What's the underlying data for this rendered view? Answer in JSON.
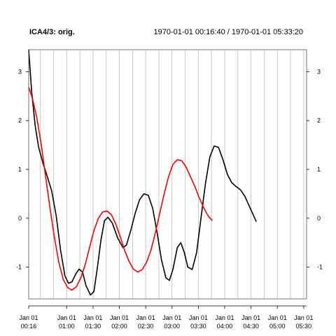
{
  "chart_data": {
    "type": "line",
    "title": "ICA4/3:  orig.",
    "time_range": "1970-01-01 00:16:40 / 1970-01-01 05:33:20",
    "x_unit": "minutes",
    "xlim": [
      16.67,
      333.33
    ],
    "ylim": [
      -1.65,
      3.45
    ],
    "y_ticks": [
      -1,
      0,
      1,
      2,
      3
    ],
    "y_tick_labels": [
      "-1",
      "0",
      "1",
      "2",
      "3"
    ],
    "x_ticks": [
      {
        "value": 16.67,
        "line1": "Jan 01",
        "line2": "00:16"
      },
      {
        "value": 60,
        "line1": "Jan 01",
        "line2": "01:00"
      },
      {
        "value": 90,
        "line1": "Jan 01",
        "line2": "01:30"
      },
      {
        "value": 120,
        "line1": "Jan 01",
        "line2": "02:00"
      },
      {
        "value": 150,
        "line1": "Jan 01",
        "line2": "02:30"
      },
      {
        "value": 180,
        "line1": "Jan 01",
        "line2": "03:00"
      },
      {
        "value": 210,
        "line1": "Jan 01",
        "line2": "03:30"
      },
      {
        "value": 240,
        "line1": "Jan 01",
        "line2": "04:00"
      },
      {
        "value": 270,
        "line1": "Jan 01",
        "line2": "04:30"
      },
      {
        "value": 300,
        "line1": "Jan 01",
        "line2": "05:00"
      },
      {
        "value": 330,
        "line1": "Jan 01",
        "line2": "05:30"
      }
    ],
    "x_grid": [
      16.67,
      30,
      45,
      60,
      75,
      90,
      105,
      120,
      135,
      150,
      165,
      180,
      195,
      210,
      225,
      240,
      255,
      270,
      285,
      300,
      315,
      330
    ],
    "grid": true,
    "series": [
      {
        "color": "#000000",
        "points": [
          [
            16.67,
            3.45
          ],
          [
            20,
            2.6
          ],
          [
            24,
            1.9
          ],
          [
            28,
            1.45
          ],
          [
            33,
            1.12
          ],
          [
            38,
            0.85
          ],
          [
            43,
            0.55
          ],
          [
            48,
            0.05
          ],
          [
            53,
            -0.65
          ],
          [
            58,
            -1.18
          ],
          [
            62,
            -1.33
          ],
          [
            66,
            -1.3
          ],
          [
            70,
            -1.15
          ],
          [
            74,
            -1.04
          ],
          [
            78,
            -1.1
          ],
          [
            82,
            -1.38
          ],
          [
            87,
            -1.57
          ],
          [
            91,
            -1.5
          ],
          [
            95,
            -1.0
          ],
          [
            99,
            -0.45
          ],
          [
            103,
            -0.05
          ],
          [
            107,
            0.02
          ],
          [
            112,
            -0.1
          ],
          [
            118,
            -0.4
          ],
          [
            124,
            -0.6
          ],
          [
            128,
            -0.55
          ],
          [
            133,
            -0.25
          ],
          [
            138,
            0.1
          ],
          [
            143,
            0.38
          ],
          [
            148,
            0.5
          ],
          [
            153,
            0.47
          ],
          [
            158,
            0.2
          ],
          [
            163,
            -0.3
          ],
          [
            168,
            -0.85
          ],
          [
            173,
            -1.22
          ],
          [
            177,
            -1.27
          ],
          [
            181,
            -1.05
          ],
          [
            186,
            -0.6
          ],
          [
            190,
            -0.5
          ],
          [
            194,
            -0.7
          ],
          [
            198,
            -1.0
          ],
          [
            203,
            -1.05
          ],
          [
            208,
            -0.7
          ],
          [
            213,
            0.0
          ],
          [
            218,
            0.7
          ],
          [
            223,
            1.25
          ],
          [
            228,
            1.48
          ],
          [
            233,
            1.45
          ],
          [
            238,
            1.2
          ],
          [
            243,
            0.9
          ],
          [
            248,
            0.73
          ],
          [
            253,
            0.65
          ],
          [
            258,
            0.58
          ],
          [
            263,
            0.45
          ],
          [
            268,
            0.25
          ],
          [
            273,
            0.05
          ],
          [
            276,
            -0.07
          ]
        ]
      },
      {
        "color": "#ff0000",
        "points": [
          [
            16.67,
            2.68
          ],
          [
            21,
            2.45
          ],
          [
            26,
            2.05
          ],
          [
            31,
            1.5
          ],
          [
            36,
            0.85
          ],
          [
            41,
            0.2
          ],
          [
            46,
            -0.4
          ],
          [
            51,
            -0.9
          ],
          [
            56,
            -1.25
          ],
          [
            61,
            -1.42
          ],
          [
            66,
            -1.47
          ],
          [
            71,
            -1.4
          ],
          [
            76,
            -1.22
          ],
          [
            81,
            -0.95
          ],
          [
            86,
            -0.6
          ],
          [
            91,
            -0.25
          ],
          [
            96,
            0.0
          ],
          [
            101,
            0.13
          ],
          [
            106,
            0.15
          ],
          [
            111,
            0.07
          ],
          [
            116,
            -0.12
          ],
          [
            121,
            -0.38
          ],
          [
            126,
            -0.66
          ],
          [
            131,
            -0.88
          ],
          [
            136,
            -1.04
          ],
          [
            141,
            -1.1
          ],
          [
            146,
            -1.05
          ],
          [
            151,
            -0.9
          ],
          [
            156,
            -0.65
          ],
          [
            161,
            -0.3
          ],
          [
            166,
            0.1
          ],
          [
            171,
            0.5
          ],
          [
            176,
            0.85
          ],
          [
            181,
            1.1
          ],
          [
            186,
            1.2
          ],
          [
            191,
            1.18
          ],
          [
            196,
            1.05
          ],
          [
            201,
            0.85
          ],
          [
            206,
            0.65
          ],
          [
            211,
            0.42
          ],
          [
            216,
            0.22
          ],
          [
            221,
            0.05
          ],
          [
            226,
            -0.05
          ]
        ]
      }
    ]
  }
}
